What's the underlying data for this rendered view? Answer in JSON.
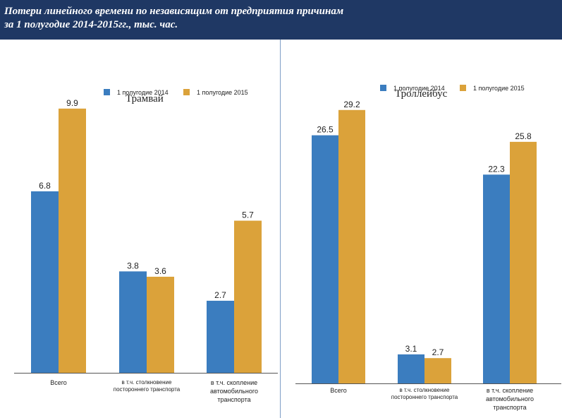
{
  "header": {
    "title_line1": "Потери линейного времени по независящим от предприятия причинам",
    "title_line2": "за 1 полугодие 2014-2015гг., тыс. час."
  },
  "colors": {
    "series_2014": "#3b7dbf",
    "series_2015": "#dba23a",
    "header_bg": "#1f3864"
  },
  "chart_data": [
    {
      "type": "bar",
      "title": "Трамвай",
      "categories": [
        "Всего",
        "в т.ч. столкновение постороннего транспорта",
        "в т.ч. скопление автомобильного транспорта"
      ],
      "category_lines": [
        [
          "Всего"
        ],
        [
          "в т.ч. столкновение",
          "постороннего транспорта"
        ],
        [
          "в т.ч. скопление",
          "автомобильного",
          "транспорта"
        ]
      ],
      "series": [
        {
          "name": "1 полугодие 2014",
          "values": [
            6.8,
            3.8,
            2.7
          ]
        },
        {
          "name": "1 полугодие 2015",
          "values": [
            9.9,
            3.6,
            5.7
          ]
        }
      ],
      "ylim": [
        0,
        10.9
      ],
      "legend": "top-center",
      "grid": false
    },
    {
      "type": "bar",
      "title": "Троллейбус",
      "categories": [
        "Всего",
        "в т.ч. столкновение постороннего транспорта",
        "в т.ч. скопление автомобильного транспорта"
      ],
      "category_lines": [
        [
          "Всего"
        ],
        [
          "в т.ч. столкновение",
          "постороннего транспорта"
        ],
        [
          "в т.ч. скопление",
          "автомобильного",
          "транспорта"
        ]
      ],
      "series": [
        {
          "name": "1 полугодие 2014",
          "values": [
            26.5,
            3.1,
            22.3
          ]
        },
        {
          "name": "1 полугодие 2015",
          "values": [
            29.2,
            2.7,
            25.8
          ]
        }
      ],
      "ylim": [
        0,
        32.2
      ],
      "legend": "top-center",
      "grid": false
    }
  ]
}
